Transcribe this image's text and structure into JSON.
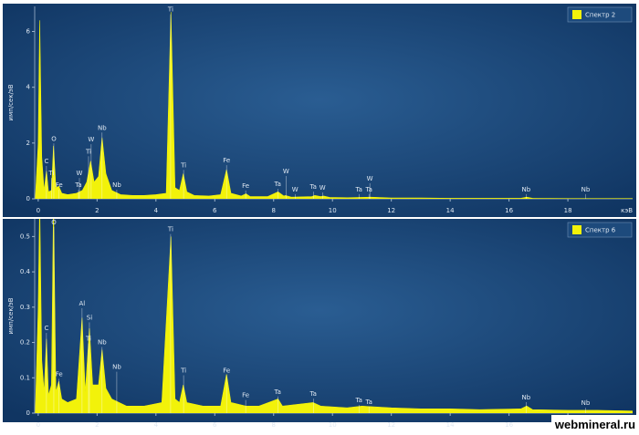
{
  "chart_data": [
    {
      "type": "area",
      "legend": "Спектр 2",
      "ylabel": "имп/сек/эВ",
      "xlabel": "кэВ",
      "color": "#f2f20a",
      "xlim": [
        -0.12,
        20.2
      ],
      "ylim": [
        0,
        6.9
      ],
      "xticks": [
        0,
        2,
        4,
        6,
        8,
        10,
        12,
        14,
        16,
        18
      ],
      "yticks": [
        0,
        2,
        4,
        6
      ],
      "x": [
        -0.1,
        0.0,
        0.05,
        0.12,
        0.2,
        0.28,
        0.35,
        0.45,
        0.52,
        0.6,
        0.7,
        0.8,
        1.0,
        1.3,
        1.5,
        1.65,
        1.78,
        1.9,
        2.05,
        2.17,
        2.3,
        2.5,
        2.8,
        3.2,
        3.6,
        4.0,
        4.35,
        4.51,
        4.65,
        4.8,
        4.93,
        5.05,
        5.3,
        5.8,
        6.2,
        6.4,
        6.55,
        6.9,
        7.06,
        7.2,
        7.8,
        8.15,
        8.35,
        8.4,
        8.6,
        9.3,
        9.4,
        9.6,
        9.7,
        9.9,
        10.5,
        11.3,
        12,
        13,
        14,
        15,
        16.4,
        16.6,
        16.8,
        18,
        19,
        20.2
      ],
      "y": [
        0,
        2.0,
        6.4,
        1.5,
        0.3,
        1.0,
        0.25,
        0.3,
        1.9,
        0.4,
        0.45,
        0.2,
        0.15,
        0.2,
        0.3,
        0.6,
        1.35,
        0.6,
        0.8,
        2.2,
        0.9,
        0.3,
        0.15,
        0.12,
        0.12,
        0.15,
        0.2,
        6.7,
        0.4,
        0.3,
        0.9,
        0.25,
        0.12,
        0.1,
        0.15,
        1.05,
        0.2,
        0.1,
        0.18,
        0.08,
        0.08,
        0.25,
        0.1,
        0.12,
        0.06,
        0.08,
        0.12,
        0.08,
        0.1,
        0.05,
        0.04,
        0.06,
        0.03,
        0.03,
        0.02,
        0.02,
        0.02,
        0.06,
        0.02,
        0.01,
        0.01,
        0.01
      ],
      "annotations": [
        {
          "text": "C",
          "x": 0.28,
          "y": 1.34
        },
        {
          "text": "Ti",
          "x": 0.45,
          "y": 0.91
        },
        {
          "text": "O",
          "x": 0.53,
          "y": 2.15
        },
        {
          "text": "Fe",
          "x": 0.71,
          "y": 0.49
        },
        {
          "text": "W",
          "x": 1.4,
          "y": 0.91
        },
        {
          "text": "Ta",
          "x": 1.37,
          "y": 0.49
        },
        {
          "text": "Ti",
          "x": 1.71,
          "y": 1.69
        },
        {
          "text": "W",
          "x": 1.8,
          "y": 2.12
        },
        {
          "text": "Nb",
          "x": 2.17,
          "y": 2.54
        },
        {
          "text": "Nb",
          "x": 2.67,
          "y": 0.49
        },
        {
          "text": "Ti",
          "x": 4.5,
          "y": 6.78
        },
        {
          "text": "Ti",
          "x": 4.94,
          "y": 1.2
        },
        {
          "text": "Fe",
          "x": 6.4,
          "y": 1.37
        },
        {
          "text": "Fe",
          "x": 7.05,
          "y": 0.46
        },
        {
          "text": "Ta",
          "x": 8.14,
          "y": 0.52
        },
        {
          "text": "W",
          "x": 8.42,
          "y": 0.98
        },
        {
          "text": "W",
          "x": 8.73,
          "y": 0.33
        },
        {
          "text": "Ta",
          "x": 9.35,
          "y": 0.42
        },
        {
          "text": "W",
          "x": 9.66,
          "y": 0.39
        },
        {
          "text": "Ta",
          "x": 10.9,
          "y": 0.33
        },
        {
          "text": "Ta",
          "x": 11.24,
          "y": 0.33
        },
        {
          "text": "W",
          "x": 11.27,
          "y": 0.72
        },
        {
          "text": "Nb",
          "x": 16.58,
          "y": 0.33
        },
        {
          "text": "Nb",
          "x": 18.6,
          "y": 0.33
        }
      ]
    },
    {
      "type": "area",
      "legend": "Спектр 6",
      "ylabel": "имп/сек/эВ",
      "color": "#f2f20a",
      "xlim": [
        -0.12,
        20.2
      ],
      "ylim": [
        0,
        0.55
      ],
      "xticks": [
        0,
        2,
        4,
        6,
        8,
        10,
        12,
        14,
        16,
        18
      ],
      "yticks": [
        0,
        0.1,
        0.2,
        0.3,
        0.4,
        0.5
      ],
      "x": [
        -0.1,
        0.0,
        0.05,
        0.12,
        0.2,
        0.28,
        0.35,
        0.45,
        0.52,
        0.6,
        0.7,
        0.8,
        1.0,
        1.3,
        1.49,
        1.6,
        1.74,
        1.85,
        2.05,
        2.17,
        2.3,
        2.5,
        3.0,
        3.6,
        4.2,
        4.51,
        4.65,
        4.8,
        4.93,
        5.05,
        5.6,
        6.2,
        6.4,
        6.55,
        7.06,
        7.5,
        8.15,
        8.3,
        9.34,
        9.6,
        10.5,
        11.0,
        12,
        13,
        14,
        15,
        16.4,
        16.6,
        16.8,
        18,
        19,
        20.2
      ],
      "y": [
        0,
        0.3,
        0.6,
        0.15,
        0.06,
        0.21,
        0.05,
        0.08,
        0.6,
        0.06,
        0.09,
        0.04,
        0.03,
        0.04,
        0.27,
        0.06,
        0.24,
        0.08,
        0.08,
        0.18,
        0.07,
        0.04,
        0.02,
        0.02,
        0.03,
        0.5,
        0.04,
        0.03,
        0.08,
        0.03,
        0.02,
        0.02,
        0.11,
        0.03,
        0.02,
        0.02,
        0.04,
        0.02,
        0.03,
        0.02,
        0.015,
        0.02,
        0.015,
        0.012,
        0.012,
        0.01,
        0.012,
        0.02,
        0.01,
        0.008,
        0.008,
        0.006
      ],
      "annotations": [
        {
          "text": "C",
          "x": 0.28,
          "y": 0.24
        },
        {
          "text": "O",
          "x": 0.53,
          "y": 0.54
        },
        {
          "text": "Fe",
          "x": 0.71,
          "y": 0.11
        },
        {
          "text": "Al",
          "x": 1.49,
          "y": 0.31
        },
        {
          "text": "Si",
          "x": 1.74,
          "y": 0.27
        },
        {
          "text": "Ti",
          "x": 1.71,
          "y": 0.21
        },
        {
          "text": "Nb",
          "x": 2.17,
          "y": 0.2
        },
        {
          "text": "Nb",
          "x": 2.67,
          "y": 0.13
        },
        {
          "text": "Ti",
          "x": 4.5,
          "y": 0.52
        },
        {
          "text": "Ti",
          "x": 4.94,
          "y": 0.12
        },
        {
          "text": "Fe",
          "x": 6.4,
          "y": 0.12
        },
        {
          "text": "Fe",
          "x": 7.05,
          "y": 0.05
        },
        {
          "text": "Ta",
          "x": 8.14,
          "y": 0.06
        },
        {
          "text": "Ta",
          "x": 9.35,
          "y": 0.054
        },
        {
          "text": "Ta",
          "x": 10.9,
          "y": 0.036
        },
        {
          "text": "Ta",
          "x": 11.24,
          "y": 0.031
        },
        {
          "text": "Nb",
          "x": 16.58,
          "y": 0.044
        },
        {
          "text": "Nb",
          "x": 18.6,
          "y": 0.028
        }
      ]
    }
  ],
  "watermark": "webmineral.ru"
}
